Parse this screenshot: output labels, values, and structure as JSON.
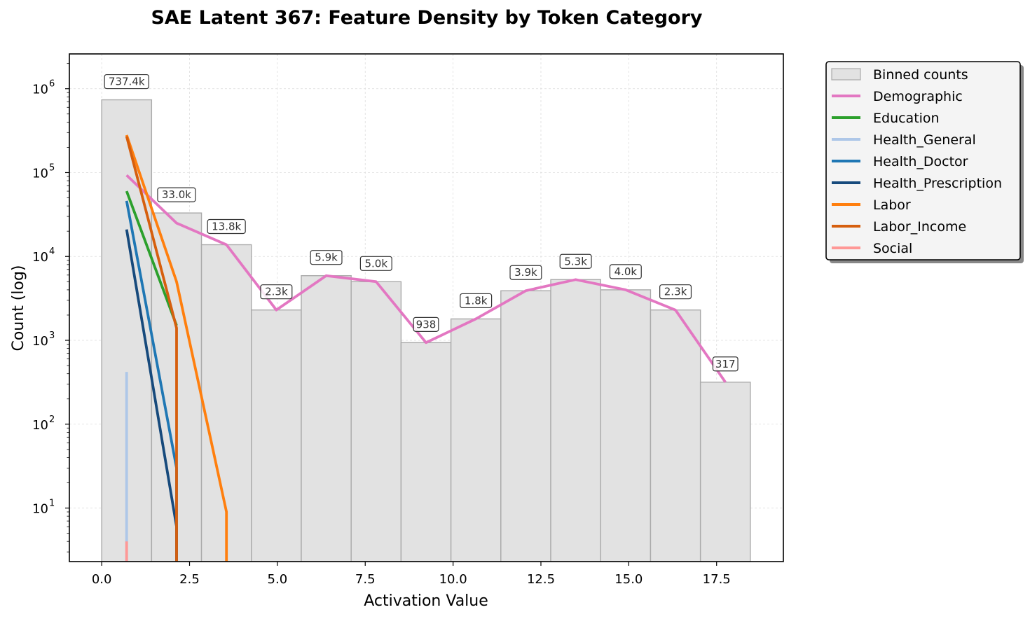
{
  "chart_data": {
    "type": "bar",
    "title": "SAE Latent 367: Feature Density by Token Category",
    "xlabel": "Activation Value",
    "ylabel": "Count (log)",
    "xlim": [
      -0.92,
      19.4
    ],
    "ylim": [
      2.3,
      2600000
    ],
    "yscale": "log",
    "grid": true,
    "legend_position": "outside-top-right",
    "x_ticks": [
      {
        "value": 0.0,
        "label": "0.0"
      },
      {
        "value": 2.5,
        "label": "2.5"
      },
      {
        "value": 5.0,
        "label": "5.0"
      },
      {
        "value": 7.5,
        "label": "7.5"
      },
      {
        "value": 10.0,
        "label": "10.0"
      },
      {
        "value": 12.5,
        "label": "12.5"
      },
      {
        "value": 15.0,
        "label": "15.0"
      },
      {
        "value": 17.5,
        "label": "17.5"
      }
    ],
    "y_ticks": [
      {
        "value": 10,
        "base": "10",
        "exp": "1"
      },
      {
        "value": 100,
        "base": "10",
        "exp": "2"
      },
      {
        "value": 1000,
        "base": "10",
        "exp": "3"
      },
      {
        "value": 10000,
        "base": "10",
        "exp": "4"
      },
      {
        "value": 100000,
        "base": "10",
        "exp": "5"
      },
      {
        "value": 1000000,
        "base": "10",
        "exp": "6"
      }
    ],
    "histogram": {
      "name": "Binned counts",
      "color": "#e2e2e2",
      "edge_color": "#aaaaaa",
      "bins": [
        {
          "start": 0.0,
          "end": 1.42,
          "count": 737400,
          "label": "737.4k"
        },
        {
          "start": 1.42,
          "end": 2.84,
          "count": 33000,
          "label": "33.0k"
        },
        {
          "start": 2.84,
          "end": 4.26,
          "count": 13800,
          "label": "13.8k"
        },
        {
          "start": 4.26,
          "end": 5.68,
          "count": 2300,
          "label": "2.3k"
        },
        {
          "start": 5.68,
          "end": 7.1,
          "count": 5900,
          "label": "5.9k"
        },
        {
          "start": 7.1,
          "end": 8.52,
          "count": 5000,
          "label": "5.0k"
        },
        {
          "start": 8.52,
          "end": 9.94,
          "count": 938,
          "label": "938"
        },
        {
          "start": 9.94,
          "end": 11.36,
          "count": 1800,
          "label": "1.8k"
        },
        {
          "start": 11.36,
          "end": 12.78,
          "count": 3900,
          "label": "3.9k"
        },
        {
          "start": 12.78,
          "end": 14.2,
          "count": 5300,
          "label": "5.3k"
        },
        {
          "start": 14.2,
          "end": 15.62,
          "count": 4000,
          "label": "4.0k"
        },
        {
          "start": 15.62,
          "end": 17.04,
          "count": 2300,
          "label": "2.3k"
        },
        {
          "start": 17.04,
          "end": 18.46,
          "count": 317,
          "label": "317"
        }
      ]
    },
    "series": [
      {
        "name": "Demographic",
        "color": "#e377c2",
        "x": [
          0.71,
          2.13,
          3.55,
          4.97,
          6.39,
          7.81,
          9.23,
          10.65,
          12.07,
          13.49,
          14.91,
          16.33,
          17.75
        ],
        "y": [
          93000,
          25000,
          13800,
          2300,
          5900,
          5000,
          938,
          1800,
          3900,
          5300,
          4000,
          2300,
          317
        ]
      },
      {
        "name": "Education",
        "color": "#2ca02c",
        "x": [
          0.71,
          2.13
        ],
        "y": [
          60000,
          1500
        ]
      },
      {
        "name": "Health_General",
        "color": "#aec7e8",
        "x": [
          0.71,
          0.71
        ],
        "y": [
          420,
          2.3
        ]
      },
      {
        "name": "Health_Doctor",
        "color": "#1f77b4",
        "x": [
          0.71,
          2.13,
          2.13
        ],
        "y": [
          46000,
          30,
          2.3
        ]
      },
      {
        "name": "Health_Prescription",
        "color": "#174a7c",
        "x": [
          0.71,
          2.13,
          2.13
        ],
        "y": [
          21000,
          6,
          2.3
        ]
      },
      {
        "name": "Labor",
        "color": "#ff7f0e",
        "x": [
          0.71,
          2.13,
          3.55,
          3.55
        ],
        "y": [
          280000,
          5000,
          9,
          2.3
        ]
      },
      {
        "name": "Labor_Income",
        "color": "#d65f0e",
        "x": [
          0.71,
          2.13,
          2.13
        ],
        "y": [
          270000,
          1400,
          2.3
        ]
      },
      {
        "name": "Social",
        "color": "#ff9896",
        "x": [
          0.71,
          0.71
        ],
        "y": [
          4,
          2.3
        ]
      }
    ]
  }
}
